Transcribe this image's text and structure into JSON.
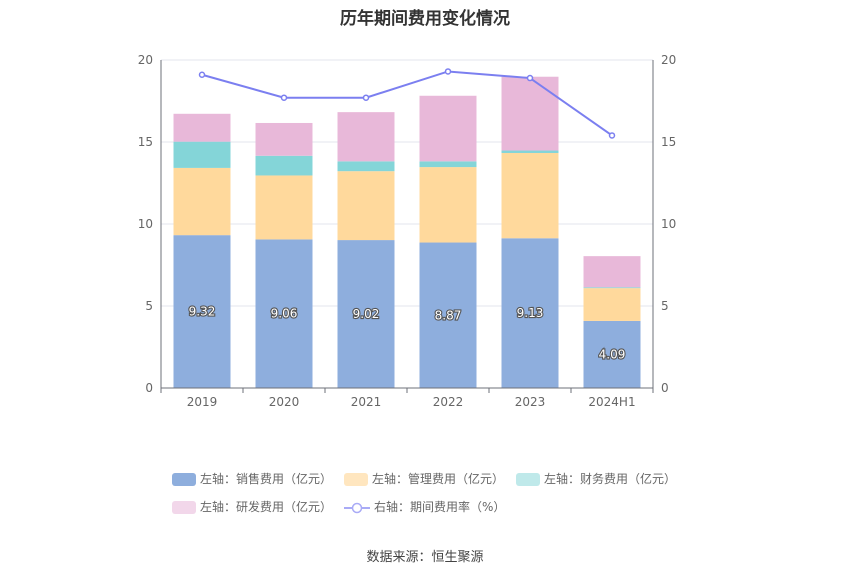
{
  "title": "历年期间费用变化情况",
  "source": "数据来源：恒生聚源",
  "chart_data": {
    "type": "bar",
    "stacked": true,
    "categories": [
      "2019",
      "2020",
      "2021",
      "2022",
      "2023",
      "2024H1"
    ],
    "left_axis": {
      "ylim": [
        0,
        20
      ],
      "ticks": [
        "0",
        "5",
        "10",
        "15",
        "20"
      ]
    },
    "right_axis": {
      "ylim": [
        0,
        20
      ],
      "ticks": [
        "0",
        "5",
        "10",
        "15",
        "20"
      ]
    },
    "grid": true,
    "legend_position": "bottom",
    "series": [
      {
        "name": "左轴：销售费用（亿元）",
        "axis": "left",
        "type": "bar",
        "color": "#8eaedd",
        "values": [
          9.32,
          9.06,
          9.02,
          8.87,
          9.13,
          4.09
        ],
        "labels": [
          "9.32",
          "9.06",
          "9.02",
          "8.87",
          "9.13",
          "4.09"
        ]
      },
      {
        "name": "左轴：管理费用（亿元）",
        "axis": "left",
        "type": "bar",
        "color": "#ffd99c",
        "values": [
          4.1,
          3.9,
          4.2,
          4.6,
          5.2,
          2.0
        ]
      },
      {
        "name": "左轴：财务费用（亿元）",
        "axis": "left",
        "type": "bar",
        "color": "#84d5d8",
        "values": [
          1.6,
          1.2,
          0.6,
          0.35,
          0.15,
          0.05
        ]
      },
      {
        "name": "左轴：研发费用（亿元）",
        "axis": "left",
        "type": "bar",
        "color": "#e8b8d9",
        "values": [
          1.7,
          2.0,
          3.0,
          4.0,
          4.5,
          1.9
        ]
      },
      {
        "name": "右轴：期间费用率（%）",
        "axis": "right",
        "type": "line",
        "color": "#7b7ff0",
        "values": [
          19.1,
          17.7,
          17.7,
          19.3,
          18.9,
          15.4
        ]
      }
    ]
  },
  "legend": [
    {
      "label": "左轴：销售费用（亿元）",
      "color": "#8eaedd",
      "kind": "box"
    },
    {
      "label": "左轴：管理费用（亿元）",
      "color": "#ffe6bf",
      "kind": "box"
    },
    {
      "label": "左轴：财务费用（亿元）",
      "color": "#bfe9ea",
      "kind": "box"
    },
    {
      "label": "左轴：研发费用（亿元）",
      "color": "#f2d7ea",
      "kind": "box"
    },
    {
      "label": "右轴：期间费用率（%）",
      "color": "#a9abf6",
      "kind": "line"
    }
  ]
}
